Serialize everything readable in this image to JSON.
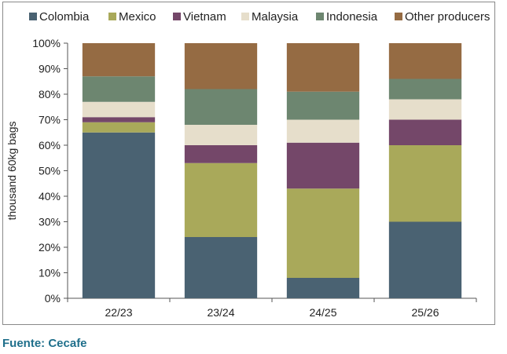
{
  "source": "Fuente: Cecafe",
  "chart_data": {
    "type": "bar",
    "stacked": true,
    "categories": [
      "22/23",
      "23/24",
      "24/25",
      "25/26"
    ],
    "ylabel": "thousand 60kg bags",
    "ylim": [
      0,
      100
    ],
    "ytick_labels": [
      "0%",
      "10%",
      "20%",
      "30%",
      "40%",
      "50%",
      "60%",
      "70%",
      "80%",
      "90%",
      "100%"
    ],
    "legend_position": "top",
    "grid": false,
    "series": [
      {
        "name": "Colombia",
        "color": "#4a6272",
        "values": [
          65,
          24,
          8,
          30
        ]
      },
      {
        "name": "Mexico",
        "color": "#a9a95a",
        "values": [
          4,
          29,
          35,
          30
        ]
      },
      {
        "name": "Vietnam",
        "color": "#744769",
        "values": [
          2,
          7,
          18,
          10
        ]
      },
      {
        "name": "Malaysia",
        "color": "#e6decb",
        "values": [
          6,
          8,
          9,
          8
        ]
      },
      {
        "name": "Indonesia",
        "color": "#6d8670",
        "values": [
          10,
          14,
          11,
          8
        ]
      },
      {
        "name": "Other producers",
        "color": "#956b43",
        "values": [
          13,
          18,
          19,
          14
        ]
      }
    ]
  }
}
